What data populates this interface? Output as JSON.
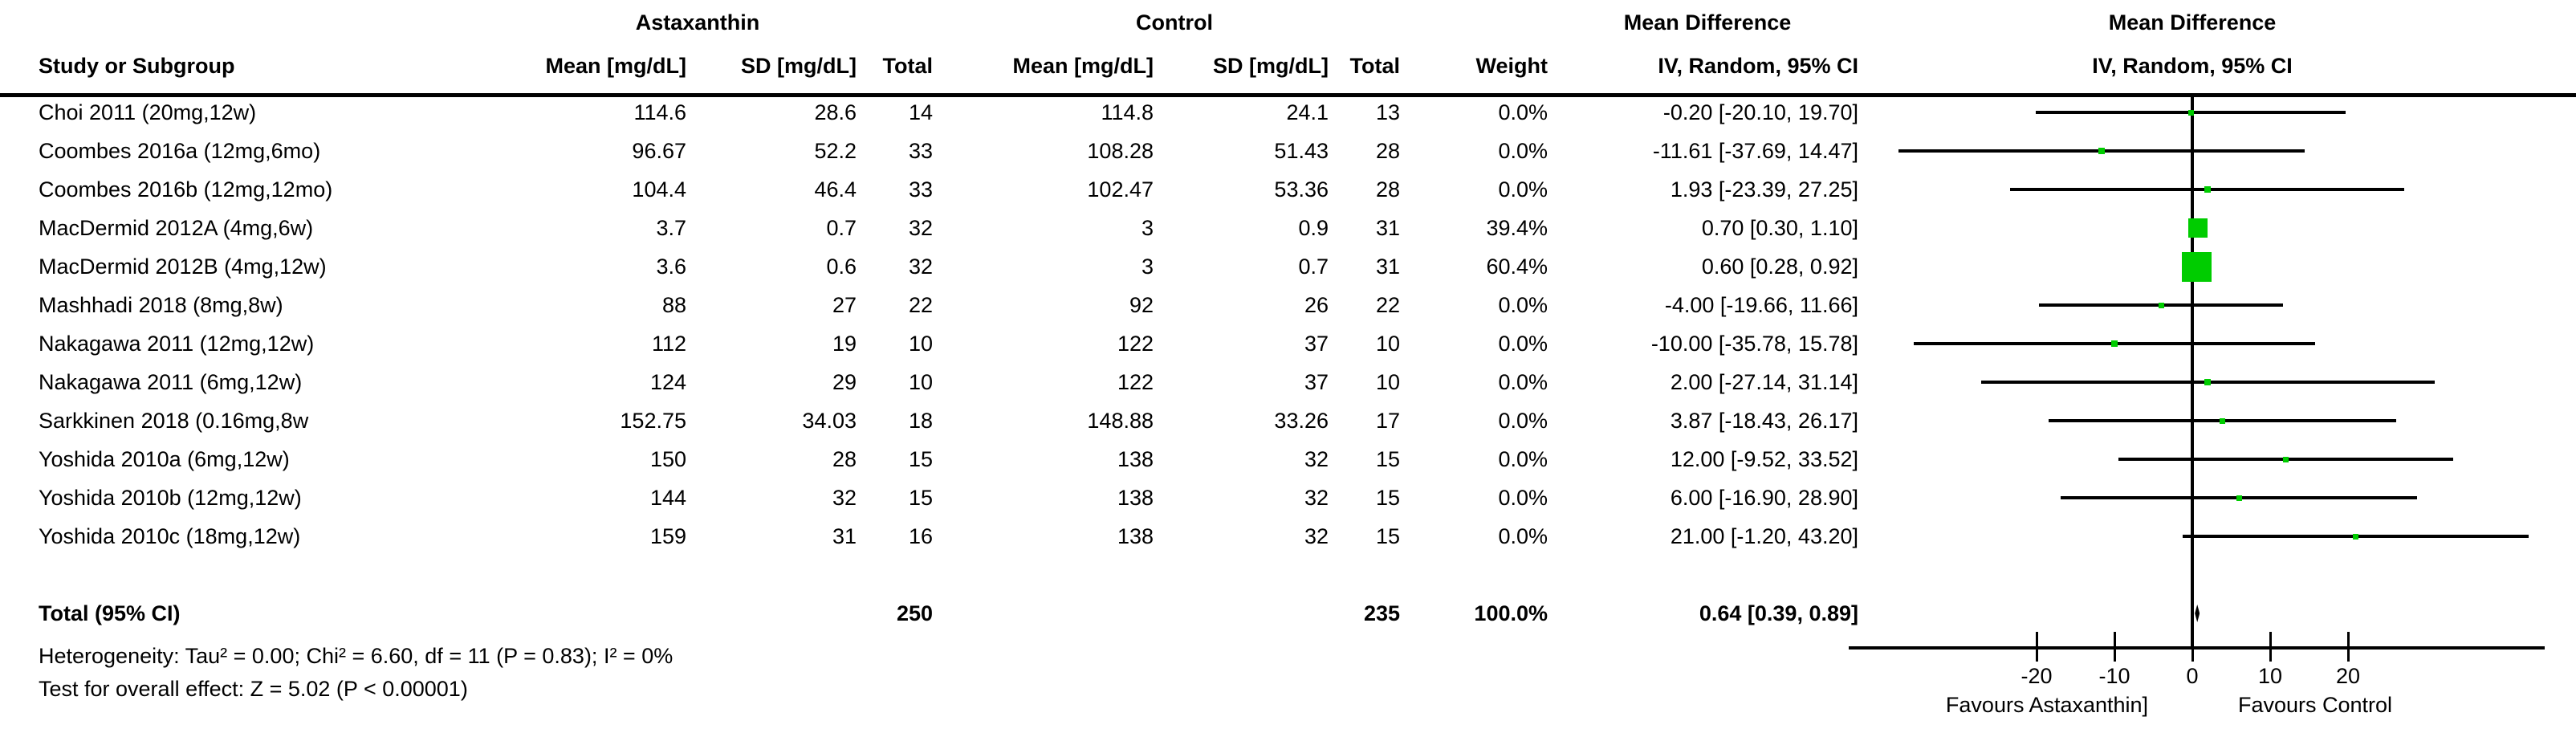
{
  "figure": {
    "group_headers": {
      "experimental": "Astaxanthin",
      "control": "Control",
      "md_text": "Mean Difference",
      "md_plot": "Mean Difference"
    },
    "column_headers": {
      "study": "Study or Subgroup",
      "mean1": "Mean [mg/dL]",
      "sd1": "SD [mg/dL]",
      "total1": "Total",
      "mean2": "Mean [mg/dL]",
      "sd2": "SD [mg/dL]",
      "total2": "Total",
      "weight": "Weight",
      "ci": "IV, Random, 95% CI",
      "ci_plot": "IV, Random, 95% CI"
    },
    "rows": [
      {
        "study": "Choi 2011 (20mg,12w)",
        "a_mean": "114.6",
        "a_sd": "28.6",
        "a_total": "14",
        "c_mean": "114.8",
        "c_sd": "24.1",
        "c_total": "13",
        "weight": "0.0%",
        "ci_text": "-0.20 [-20.10, 19.70]",
        "md": -0.2,
        "lo": -20.1,
        "hi": 19.7,
        "marker_px": 7
      },
      {
        "study": "Coombes 2016a (12mg,6mo)",
        "a_mean": "96.67",
        "a_sd": "52.2",
        "a_total": "33",
        "c_mean": "108.28",
        "c_sd": "51.43",
        "c_total": "28",
        "weight": "0.0%",
        "ci_text": "-11.61 [-37.69, 14.47]",
        "md": -11.61,
        "lo": -37.69,
        "hi": 14.47,
        "marker_px": 8
      },
      {
        "study": "Coombes 2016b (12mg,12mo)",
        "a_mean": "104.4",
        "a_sd": "46.4",
        "a_total": "33",
        "c_mean": "102.47",
        "c_sd": "53.36",
        "c_total": "28",
        "weight": "0.0%",
        "ci_text": "1.93 [-23.39, 27.25]",
        "md": 1.93,
        "lo": -23.39,
        "hi": 27.25,
        "marker_px": 8
      },
      {
        "study": "MacDermid 2012A (4mg,6w)",
        "a_mean": "3.7",
        "a_sd": "0.7",
        "a_total": "32",
        "c_mean": "3",
        "c_sd": "0.9",
        "c_total": "31",
        "weight": "39.4%",
        "ci_text": "0.70 [0.30, 1.10]",
        "md": 0.7,
        "lo": 0.3,
        "hi": 1.1,
        "marker_px": 24
      },
      {
        "study": "MacDermid 2012B (4mg,12w)",
        "a_mean": "3.6",
        "a_sd": "0.6",
        "a_total": "32",
        "c_mean": "3",
        "c_sd": "0.7",
        "c_total": "31",
        "weight": "60.4%",
        "ci_text": "0.60 [0.28, 0.92]",
        "md": 0.6,
        "lo": 0.28,
        "hi": 0.92,
        "marker_px": 37
      },
      {
        "study": "Mashhadi 2018 (8mg,8w)",
        "a_mean": "88",
        "a_sd": "27",
        "a_total": "22",
        "c_mean": "92",
        "c_sd": "26",
        "c_total": "22",
        "weight": "0.0%",
        "ci_text": "-4.00 [-19.66, 11.66]",
        "md": -4.0,
        "lo": -19.66,
        "hi": 11.66,
        "marker_px": 7
      },
      {
        "study": "Nakagawa 2011 (12mg,12w)",
        "a_mean": "112",
        "a_sd": "19",
        "a_total": "10",
        "c_mean": "122",
        "c_sd": "37",
        "c_total": "10",
        "weight": "0.0%",
        "ci_text": "-10.00 [-35.78, 15.78]",
        "md": -10.0,
        "lo": -35.78,
        "hi": 15.78,
        "marker_px": 8
      },
      {
        "study": "Nakagawa 2011 (6mg,12w)",
        "a_mean": "124",
        "a_sd": "29",
        "a_total": "10",
        "c_mean": "122",
        "c_sd": "37",
        "c_total": "10",
        "weight": "0.0%",
        "ci_text": "2.00 [-27.14, 31.14]",
        "md": 2.0,
        "lo": -27.14,
        "hi": 31.14,
        "marker_px": 8
      },
      {
        "study": "Sarkkinen 2018 (0.16mg,8w",
        "a_mean": "152.75",
        "a_sd": "34.03",
        "a_total": "18",
        "c_mean": "148.88",
        "c_sd": "33.26",
        "c_total": "17",
        "weight": "0.0%",
        "ci_text": "3.87 [-18.43, 26.17]",
        "md": 3.87,
        "lo": -18.43,
        "hi": 26.17,
        "marker_px": 7
      },
      {
        "study": "Yoshida 2010a (6mg,12w)",
        "a_mean": "150",
        "a_sd": "28",
        "a_total": "15",
        "c_mean": "138",
        "c_sd": "32",
        "c_total": "15",
        "weight": "0.0%",
        "ci_text": "12.00 [-9.52, 33.52]",
        "md": 12.0,
        "lo": -9.52,
        "hi": 33.52,
        "marker_px": 7
      },
      {
        "study": "Yoshida 2010b (12mg,12w)",
        "a_mean": "144",
        "a_sd": "32",
        "a_total": "15",
        "c_mean": "138",
        "c_sd": "32",
        "c_total": "15",
        "weight": "0.0%",
        "ci_text": "6.00 [-16.90, 28.90]",
        "md": 6.0,
        "lo": -16.9,
        "hi": 28.9,
        "marker_px": 7
      },
      {
        "study": "Yoshida 2010c (18mg,12w)",
        "a_mean": "159",
        "a_sd": "31",
        "a_total": "16",
        "c_mean": "138",
        "c_sd": "32",
        "c_total": "15",
        "weight": "0.0%",
        "ci_text": "21.00 [-1.20, 43.20]",
        "md": 21.0,
        "lo": -1.2,
        "hi": 43.2,
        "marker_px": 7
      }
    ],
    "total_row": {
      "label": "Total (95% CI)",
      "total1": "250",
      "total2": "235",
      "weight": "100.0%",
      "ci_text": "0.64 [0.39, 0.89]",
      "md": 0.64,
      "lo": 0.39,
      "hi": 0.89
    },
    "footnotes": {
      "heterogeneity": "Heterogeneity: Tau² = 0.00; Chi² = 6.60, df = 11 (P = 0.83); I² = 0%",
      "overall_effect": "Test for overall effect: Z = 5.02 (P < 0.00001)"
    },
    "axis": {
      "ticks": [
        -20,
        -10,
        0,
        10,
        20
      ],
      "favours_left": "Favours Astaxanthin]",
      "favours_right": "Favours Control"
    },
    "colors": {
      "marker_green": "#00CC00",
      "line_black": "#000000",
      "text_black": "#000000"
    }
  },
  "chart_data": {
    "type": "forest",
    "title": "Mean Difference — Astaxanthin vs Control, IV, Random, 95% CI [mg/dL]",
    "categories": [
      "Choi 2011 (20mg,12w)",
      "Coombes 2016a (12mg,6mo)",
      "Coombes 2016b (12mg,12mo)",
      "MacDermid 2012A (4mg,6w)",
      "MacDermid 2012B (4mg,12w)",
      "Mashhadi 2018 (8mg,8w)",
      "Nakagawa 2011 (12mg,12w)",
      "Nakagawa 2011 (6mg,12w)",
      "Sarkkinen 2018 (0.16mg,8w",
      "Yoshida 2010a (6mg,12w)",
      "Yoshida 2010b (12mg,12w)",
      "Yoshida 2010c (18mg,12w)"
    ],
    "series": [
      {
        "name": "mean_difference",
        "values": [
          -0.2,
          -11.61,
          1.93,
          0.7,
          0.6,
          -4.0,
          -10.0,
          2.0,
          3.87,
          12.0,
          6.0,
          21.0
        ]
      },
      {
        "name": "ci_lower",
        "values": [
          -20.1,
          -37.69,
          -23.39,
          0.3,
          0.28,
          -19.66,
          -35.78,
          -27.14,
          -18.43,
          -9.52,
          -16.9,
          -1.2
        ]
      },
      {
        "name": "ci_upper",
        "values": [
          19.7,
          14.47,
          27.25,
          1.1,
          0.92,
          11.66,
          15.78,
          31.14,
          26.17,
          33.52,
          28.9,
          43.2
        ]
      },
      {
        "name": "weight_pct",
        "values": [
          0.0,
          0.0,
          0.0,
          39.4,
          60.4,
          0.0,
          0.0,
          0.0,
          0.0,
          0.0,
          0.0,
          0.0
        ]
      },
      {
        "name": "astaxanthin_mean",
        "values": [
          114.6,
          96.67,
          104.4,
          3.7,
          3.6,
          88,
          112,
          124,
          152.75,
          150,
          144,
          159
        ]
      },
      {
        "name": "astaxanthin_sd",
        "values": [
          28.6,
          52.2,
          46.4,
          0.7,
          0.6,
          27,
          19,
          29,
          34.03,
          28,
          32,
          31
        ]
      },
      {
        "name": "astaxanthin_total",
        "values": [
          14,
          33,
          33,
          32,
          32,
          22,
          10,
          10,
          18,
          15,
          15,
          16
        ]
      },
      {
        "name": "control_mean",
        "values": [
          114.8,
          108.28,
          102.47,
          3,
          3,
          92,
          122,
          122,
          148.88,
          138,
          138,
          138
        ]
      },
      {
        "name": "control_sd",
        "values": [
          24.1,
          51.43,
          53.36,
          0.9,
          0.7,
          26,
          37,
          37,
          33.26,
          32,
          32,
          32
        ]
      },
      {
        "name": "control_total",
        "values": [
          13,
          28,
          28,
          31,
          31,
          22,
          10,
          10,
          17,
          15,
          15,
          15
        ]
      }
    ],
    "total": {
      "label": "Total (95% CI)",
      "n_experimental": 250,
      "n_control": 235,
      "weight_pct": 100.0,
      "md": 0.64,
      "ci_lower": 0.39,
      "ci_upper": 0.89
    },
    "x_ticks": [
      -20,
      -10,
      0,
      10,
      20
    ],
    "xlim": [
      -44,
      45
    ],
    "xlabel": "Favours Astaxanthin]  Favours Control",
    "grid": false,
    "legend": false,
    "heterogeneity": "Heterogeneity: Tau² = 0.00; Chi² = 6.60, df = 11 (P = 0.83); I² = 0%",
    "overall_effect": "Test for overall effect: Z = 5.02 (P < 0.00001)"
  }
}
